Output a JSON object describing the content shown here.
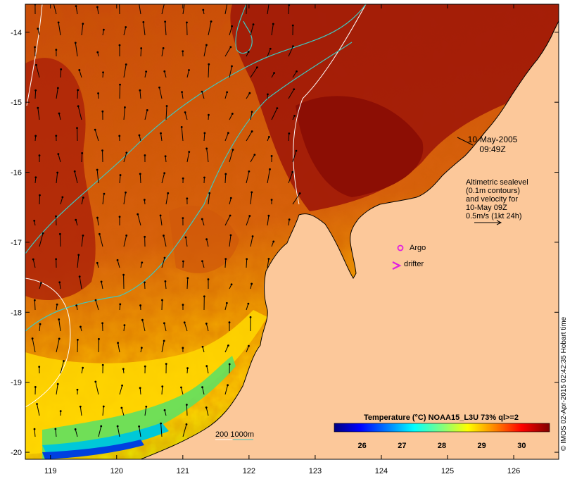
{
  "map": {
    "date": "10-May-2005",
    "time": "09:49Z",
    "lon_ticks": [
      "119",
      "120",
      "121",
      "122",
      "123",
      "124",
      "125",
      "126"
    ],
    "lat_ticks": [
      "-14",
      "-15",
      "-16",
      "-17",
      "-18",
      "-19",
      "-20"
    ],
    "lon_range": [
      118.62,
      126.68
    ],
    "lat_range": [
      -20.1,
      -13.6
    ]
  },
  "annotations": {
    "altimetry_lines": [
      "Altimetric sealevel",
      "(0.1m contours)",
      "and velocity for",
      "10-May 09Z",
      "0.5m/s (1kt 24h)"
    ],
    "argo_label": "Argo",
    "drifter_label": "drifter",
    "depth_legend": "200  1000m"
  },
  "colorbar": {
    "title": "Temperature (°C) NOAA15_L3U 73% ql>=2",
    "ticks": [
      "26",
      "27",
      "28",
      "29",
      "30"
    ],
    "stops": [
      "#000080",
      "#0000ff",
      "#0080ff",
      "#00ffff",
      "#80ff80",
      "#ffff00",
      "#ff8000",
      "#ff0000",
      "#800000"
    ]
  },
  "credit": "© IMOS 02-Apr-2015 02:42:35 Hobart time",
  "colors": {
    "land": "#fcc89a",
    "sst_warm": "#a01808",
    "sst_mid": "#e06a10",
    "sst_cool": "#ffcc00",
    "contour": "#40c8c0",
    "isobath": "#ffffff",
    "argo": "#e020e0"
  }
}
